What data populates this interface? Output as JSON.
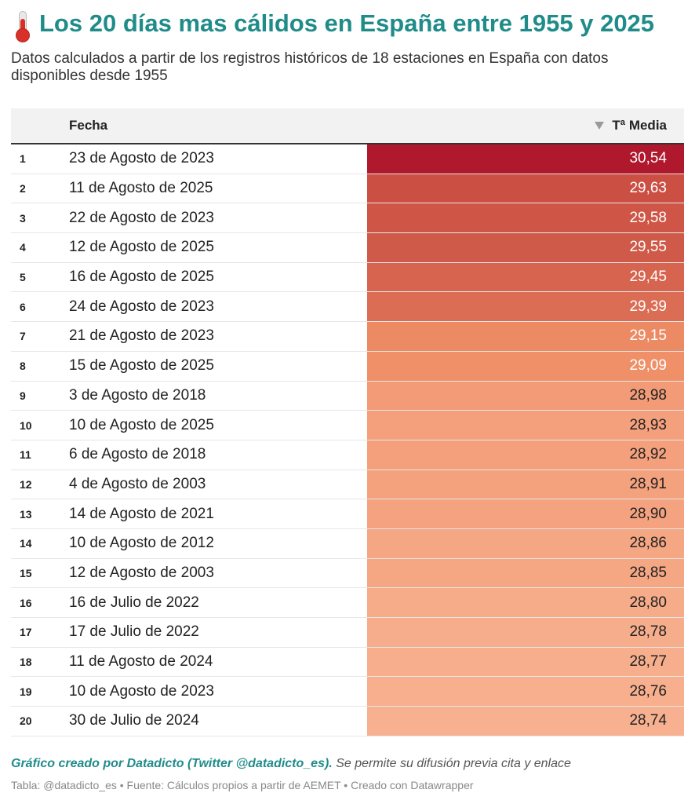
{
  "title": "Los 20 días mas cálidos en España entre 1955 y 2025",
  "title_icon": "thermometer-icon",
  "subtitle": "Datos calculados a partir de los registros históricos de 18 estaciones en España con datos disponibles desde 1955",
  "table": {
    "col_fecha": "Fecha",
    "col_media": "Tª Media",
    "sort_icon": "sort-descending-icon"
  },
  "chart_data": {
    "type": "table",
    "columns": [
      "",
      "Fecha",
      "Tª Media"
    ],
    "rows": [
      {
        "rank": "1",
        "date": "23 de Agosto de 2023",
        "value": "30,54",
        "color": "#b0182d",
        "text_color": "#ffffff"
      },
      {
        "rank": "2",
        "date": "11 de Agosto de 2025",
        "value": "29,63",
        "color": "#cc4f44",
        "text_color": "#ffffff"
      },
      {
        "rank": "3",
        "date": "22 de Agosto de 2023",
        "value": "29,58",
        "color": "#cf5546",
        "text_color": "#ffffff"
      },
      {
        "rank": "4",
        "date": "12 de Agosto de 2025",
        "value": "29,55",
        "color": "#d05a49",
        "text_color": "#ffffff"
      },
      {
        "rank": "5",
        "date": "16 de Agosto de 2025",
        "value": "29,45",
        "color": "#d6644f",
        "text_color": "#ffffff"
      },
      {
        "rank": "6",
        "date": "24 de Agosto de 2023",
        "value": "29,39",
        "color": "#dc6d55",
        "text_color": "#ffffff"
      },
      {
        "rank": "7",
        "date": "21 de Agosto de 2023",
        "value": "29,15",
        "color": "#ec8a63",
        "text_color": "#ffffff"
      },
      {
        "rank": "8",
        "date": "15 de Agosto de 2025",
        "value": "29,09",
        "color": "#ef9068",
        "text_color": "#ffffff"
      },
      {
        "rank": "9",
        "date": "3 de Agosto de 2018",
        "value": "28,98",
        "color": "#f39b77",
        "text_color": "#222222"
      },
      {
        "rank": "10",
        "date": "10 de Agosto de 2025",
        "value": "28,93",
        "color": "#f4a07c",
        "text_color": "#222222"
      },
      {
        "rank": "11",
        "date": "6 de Agosto de 2018",
        "value": "28,92",
        "color": "#f4a07d",
        "text_color": "#222222"
      },
      {
        "rank": "12",
        "date": "4 de Agosto de 2003",
        "value": "28,91",
        "color": "#f4a17e",
        "text_color": "#222222"
      },
      {
        "rank": "13",
        "date": "14 de Agosto de 2021",
        "value": "28,90",
        "color": "#f4a27f",
        "text_color": "#222222"
      },
      {
        "rank": "14",
        "date": "10 de Agosto de 2012",
        "value": "28,86",
        "color": "#f5a683",
        "text_color": "#222222"
      },
      {
        "rank": "15",
        "date": "12 de Agosto de 2003",
        "value": "28,85",
        "color": "#f5a784",
        "text_color": "#222222"
      },
      {
        "rank": "16",
        "date": "16 de Julio de 2022",
        "value": "28,80",
        "color": "#f6ab89",
        "text_color": "#222222"
      },
      {
        "rank": "17",
        "date": "17 de Julio de 2022",
        "value": "28,78",
        "color": "#f6ad8b",
        "text_color": "#222222"
      },
      {
        "rank": "18",
        "date": "11 de Agosto de 2024",
        "value": "28,77",
        "color": "#f6ae8c",
        "text_color": "#222222"
      },
      {
        "rank": "19",
        "date": "10 de Agosto de 2023",
        "value": "28,76",
        "color": "#f7af8e",
        "text_color": "#222222"
      },
      {
        "rank": "20",
        "date": "30 de Julio de 2024",
        "value": "28,74",
        "color": "#f7b190",
        "text_color": "#222222"
      }
    ]
  },
  "credit": {
    "strong": "Gráfico creado por Datadicto (Twitter @datadicto_es).",
    "rest": " Se permite su difusión previa cita y enlace"
  },
  "footer": "Tabla: @datadicto_es • Fuente: Cálculos propios a partir de AEMET • Creado con Datawrapper"
}
